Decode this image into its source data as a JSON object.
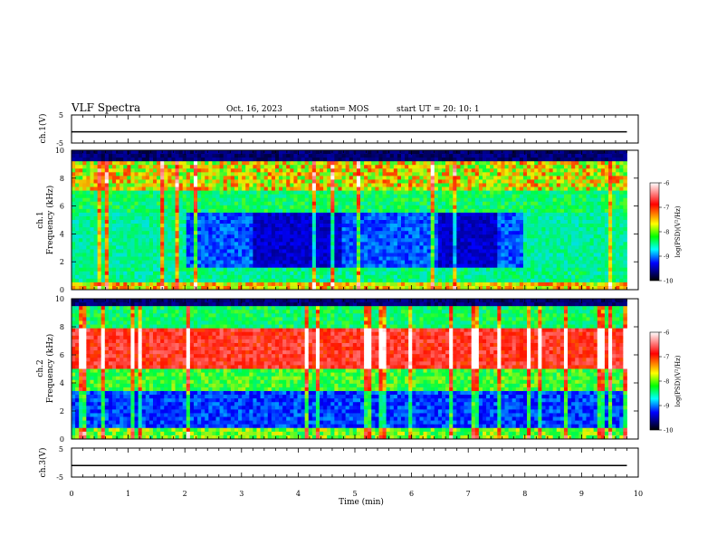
{
  "header": {
    "title": "VLF Spectra",
    "date": "Oct. 16, 2023",
    "station": "station= MOS",
    "start": "start  UT =  20: 10: 1"
  },
  "chart_data": [
    {
      "type": "line",
      "name": "ch1-waveform",
      "ylabel": "ch.1(V)",
      "ylim": [
        -5,
        5
      ],
      "yticks": [
        "5",
        "-5"
      ],
      "x": [
        0,
        9.8
      ],
      "y": [
        -1,
        -1
      ]
    },
    {
      "type": "heatmap",
      "name": "ch1-spectrogram",
      "ylabel": "ch.1",
      "ylabel2": "Frequency (kHz)",
      "ylim": [
        0,
        10
      ],
      "yticks": [
        "0",
        "2",
        "4",
        "6",
        "8",
        "10"
      ],
      "xlim": [
        0,
        10
      ],
      "data_end_min": 9.8,
      "colorbar": {
        "label": "log(PSD)(V²/Hz)",
        "range": [
          -10,
          -6
        ],
        "ticks": [
          "-6",
          "-7",
          "-8",
          "-9",
          "-10"
        ]
      },
      "features": {
        "dark_quiet_band_khz": [
          1.5,
          5.5
        ],
        "dark_quiet_interval_min": [
          2.0,
          8.0
        ],
        "active_band_khz": [
          7.0,
          9.2
        ]
      }
    },
    {
      "type": "heatmap",
      "name": "ch2-spectrogram",
      "ylabel": "ch.2",
      "ylabel2": "Frequency (kHz)",
      "ylim": [
        0,
        10
      ],
      "yticks": [
        "0",
        "2",
        "4",
        "6",
        "8",
        "10"
      ],
      "xlim": [
        0,
        10
      ],
      "data_end_min": 9.8,
      "colorbar": {
        "label": "log(PSD)(V²/Hz)",
        "range": [
          -10,
          -6
        ],
        "ticks": [
          "-6",
          "-7",
          "-8",
          "-9",
          "-10"
        ]
      },
      "features": {
        "intense_band_khz": [
          5.0,
          8.0
        ],
        "dark_band_khz": [
          0.8,
          3.2
        ]
      }
    },
    {
      "type": "line",
      "name": "ch3-waveform",
      "ylabel": "ch.3(V)",
      "ylim": [
        -5,
        5
      ],
      "yticks": [
        "5",
        "-5"
      ],
      "x": [
        0,
        9.8
      ],
      "y": [
        -1,
        -1
      ]
    }
  ],
  "xaxis": {
    "label": "Time (min)",
    "range": [
      0,
      10
    ],
    "ticks": [
      "0",
      "1",
      "2",
      "3",
      "4",
      "5",
      "6",
      "7",
      "8",
      "9",
      "10"
    ]
  }
}
